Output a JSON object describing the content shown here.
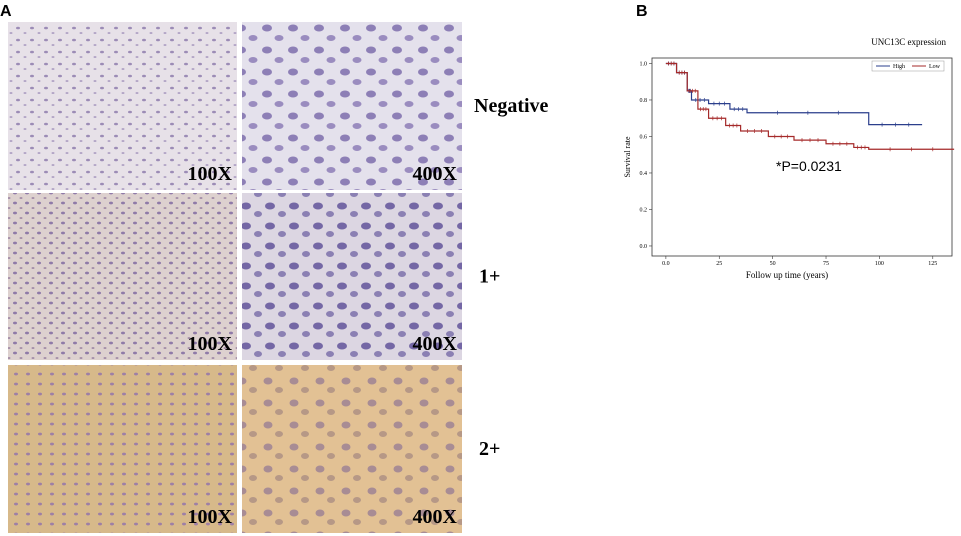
{
  "panel_a": {
    "label": "A",
    "rows": [
      {
        "grade": "Negative",
        "left_mag": "100X",
        "right_mag": "400X"
      },
      {
        "grade": "1+",
        "left_mag": "100X",
        "right_mag": "400X"
      },
      {
        "grade": "2+",
        "left_mag": "100X",
        "right_mag": "400X"
      }
    ]
  },
  "chart_data": {
    "type": "step",
    "panel_label": "B",
    "xlabel": "Follow up time (years)",
    "ylabel": "Survival rate",
    "annotation": "*P=0.0231",
    "legend_title": "UNC13C expression",
    "legend": "upper right",
    "xlim": [
      -6.5,
      134
    ],
    "ylim": [
      -0.055,
      1.03
    ],
    "xticks": [
      {
        "value": 0,
        "label": "0.0"
      },
      25,
      50,
      75,
      100,
      125
    ],
    "yticks": [
      {
        "value": 0,
        "label": "0.0"
      },
      {
        "value": 0.2,
        "label": "0.2"
      },
      {
        "value": 0.4,
        "label": "0.4"
      },
      {
        "value": 0.6,
        "label": "0.6"
      },
      {
        "value": 0.8,
        "label": "0.8"
      },
      {
        "value": 1,
        "label": "1.0"
      }
    ],
    "series": [
      {
        "name": "High",
        "color": "#2b3f8c",
        "x": [
          0,
          5,
          10,
          12,
          20,
          30,
          38,
          95,
          120
        ],
        "values": [
          1,
          0.95,
          0.85,
          0.8,
          0.78,
          0.75,
          0.73,
          0.665,
          0.665
        ]
      },
      {
        "name": "Low",
        "color": "#a52a2a",
        "x": [
          0,
          5,
          10,
          15,
          20,
          28,
          35,
          48,
          60,
          75,
          88,
          95,
          135
        ],
        "values": [
          1,
          0.95,
          0.85,
          0.75,
          0.7,
          0.66,
          0.63,
          0.6,
          0.58,
          0.56,
          0.54,
          0.53,
          0.53
        ]
      }
    ]
  }
}
